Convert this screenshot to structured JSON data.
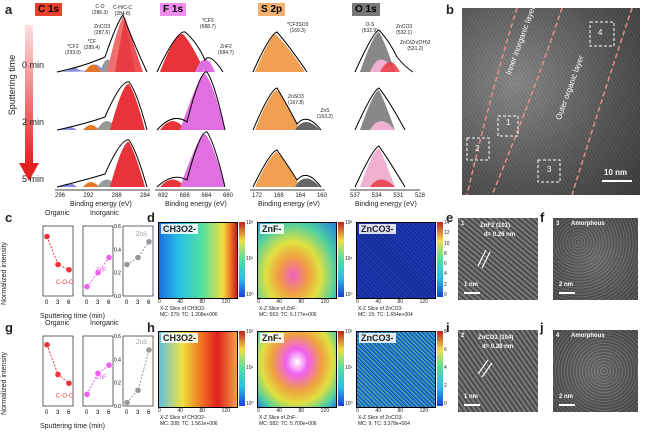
{
  "panel_letters": {
    "a": "a",
    "b": "b",
    "c": "c",
    "d": "d",
    "e": "e",
    "f": "f",
    "g": "g",
    "h": "h",
    "i": "i",
    "j": "j"
  },
  "xps": {
    "headers": [
      {
        "label": "C 1s",
        "color": "#e8412b"
      },
      {
        "label": "F 1s",
        "color": "#e06ee0"
      },
      {
        "label": "S 2p",
        "color": "#f0a050"
      },
      {
        "label": "O 1s",
        "color": "#666666"
      }
    ],
    "y_axis_label": "Sputtering time",
    "row_labels": [
      "0 min",
      "2 min",
      "5 min"
    ],
    "x_axis_label": "Binding energy (eV)",
    "c1s_ticks": [
      "296",
      "292",
      "288",
      "284"
    ],
    "f1s_ticks": [
      "692",
      "688",
      "684",
      "680"
    ],
    "s2p_ticks": [
      "172",
      "168",
      "164",
      "160"
    ],
    "o1s_ticks": [
      "537",
      "534",
      "531",
      "528"
    ],
    "c1s_peaks": [
      "C-H/C-C\n(284.8)",
      "C-O\n(286.3)",
      "ZnCO3\n(287.6)",
      "*CF\n(289.4)",
      "*CF2\n(293.0)"
    ],
    "c1s_peak_labels": {
      "chc": "C-H/C-C",
      "chc_v": "(284.8)",
      "co": "C-O",
      "co_v": "(286.3)",
      "znco3": "ZnCO3",
      "znco3_v": "(287.6)",
      "cf": "*CF",
      "cf_v": "(289.4)",
      "cf2": "*CF2",
      "cf2_v": "(293.0)"
    },
    "f1s_peak_labels": {
      "cf3": "*CF3",
      "cf3_v": "(688.7)",
      "znf2": "ZnF2",
      "znf2_v": "(684.7)"
    },
    "s2p_peak_labels": {
      "cf3so3": "*CF3SO3",
      "cf3so3_v": "(169.3)",
      "znso3": "ZnSO3",
      "znso3_v": "(167.8)",
      "zns": "ZnS",
      "zns_v": "(163.2)"
    },
    "o1s_peak_labels": {
      "os": "O-S",
      "os_v": "(532.9)",
      "znco3": "ZnCO3",
      "znco3_v": "(532.1)",
      "zno": "ZnO/Zn(OH)2",
      "zno_v": "(531.2)"
    }
  },
  "tem_b": {
    "labels": {
      "inner": "Inner inorganic layer",
      "outer": "Outer organic layer",
      "scale": "10 nm"
    },
    "boxes": [
      "1",
      "2",
      "3",
      "4"
    ]
  },
  "chart_data": [
    {
      "type": "line",
      "panel": "c",
      "title": "Organic",
      "ylabel": "Normalized intensity",
      "xlabel": "Sputtering time (min)",
      "categories": [
        0,
        2,
        4
      ],
      "series": [
        {
          "name": "C-O-C",
          "color": "#e8333a",
          "values": [
            3.4,
            1.8,
            1.5
          ]
        }
      ],
      "ylim": [
        0,
        4
      ]
    },
    {
      "type": "line",
      "panel": "c",
      "title": "Inorganic",
      "yticks": [
        "0.0",
        "0.2",
        "0.4",
        "0.6"
      ],
      "categories": [
        0,
        2,
        4
      ],
      "series": [
        {
          "name": "ZnF",
          "color": "#f060f0",
          "values": [
            0.08,
            0.2,
            0.33
          ]
        }
      ],
      "ylim": [
        0,
        0.6
      ]
    },
    {
      "type": "line",
      "panel": "c",
      "categories": [
        0,
        2,
        4
      ],
      "series": [
        {
          "name": "ZnS",
          "color": "#999999",
          "values": [
            1.8,
            2.2,
            3.1
          ]
        }
      ],
      "ylim": [
        0,
        4
      ]
    },
    {
      "type": "line",
      "panel": "g",
      "title": "Organic",
      "ylabel": "Normalized intensity",
      "xlabel": "Sputtering time (min)",
      "categories": [
        0,
        2,
        4
      ],
      "series": [
        {
          "name": "C-O-C",
          "color": "#e8333a",
          "values": [
            3.5,
            1.8,
            1.3
          ]
        }
      ],
      "ylim": [
        0,
        4
      ]
    },
    {
      "type": "line",
      "panel": "g",
      "title": "Inorganic",
      "yticks": [
        "0.0",
        "0.2",
        "0.4",
        "0.6"
      ],
      "categories": [
        0,
        2,
        4
      ],
      "series": [
        {
          "name": "ZnF",
          "color": "#f060f0",
          "values": [
            0.1,
            0.28,
            0.35
          ]
        }
      ],
      "ylim": [
        0,
        0.6
      ]
    },
    {
      "type": "line",
      "panel": "g",
      "categories": [
        0,
        2,
        4
      ],
      "series": [
        {
          "name": "ZnS",
          "color": "#999999",
          "values": [
            0.2,
            0.9,
            3.2
          ]
        }
      ],
      "ylim": [
        0,
        4
      ]
    }
  ],
  "tof_d": [
    {
      "label": "CH3O2-",
      "cap1": "X-Z Slice of CH3O2-",
      "cap2": "MC: 279; TC: 1.208e+006",
      "cb": [
        "10²",
        "10¹",
        "10⁰"
      ]
    },
    {
      "label": "ZnF-",
      "cap1": "X-Z Slice of ZnF-",
      "cap2": "MC: 563; TC: 6.177e+006",
      "cb": [
        "10²",
        "10¹",
        "10⁰"
      ]
    },
    {
      "label": "ZnCO3-",
      "cap1": "X-Z Slice of ZnCO3-",
      "cap2": "MC: 15; TC: 1.654e+004",
      "cb": [
        "14",
        "12",
        "10",
        "8",
        "6",
        "4",
        "2",
        "0"
      ]
    }
  ],
  "tof_h": [
    {
      "label": "CH3O2-",
      "cap1": "X-Z Slice of CH3O2-",
      "cap2": "MC: 208; TC: 1.561e+006",
      "cb": [
        "10²",
        "10¹",
        "10⁰"
      ]
    },
    {
      "label": "ZnF-",
      "cap1": "X-Z Slice of ZnF-",
      "cap2": "MC: 582; TC: 5.700e+006",
      "cb": [
        "10²",
        "10¹",
        "10⁰"
      ]
    },
    {
      "label": "ZnCO3-",
      "cap1": "X-Z Slice of ZnCO3-",
      "cap2": "MC: 9; TC: 3.378e+004",
      "cb": [
        "8",
        "6",
        "4",
        "2",
        "0"
      ]
    }
  ],
  "tof_ticks": [
    "0",
    "40",
    "80",
    "120"
  ],
  "hrtem": {
    "e": {
      "num": "1",
      "phase": "ZnF2 (101)",
      "d": "d= 0.26 nm",
      "scale": "1 nm"
    },
    "f": {
      "num": "3",
      "phase": "Amorphous",
      "scale": "2 nm"
    },
    "i": {
      "num": "2",
      "phase": "ZnCO3 (104)",
      "d": "d= 0.28 nm",
      "scale": "1 nm"
    },
    "j": {
      "num": "4",
      "phase": "Amorphous",
      "scale": "2 nm"
    }
  },
  "colors": {
    "red": "#e8333a",
    "pink": "#f060f0",
    "gray": "#999999",
    "orange": "#f0a050"
  }
}
